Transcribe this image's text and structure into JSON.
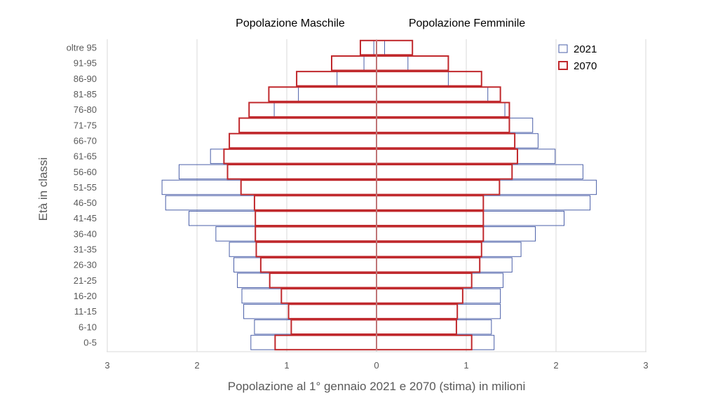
{
  "chart_data": {
    "type": "bar",
    "orientation": "horizontal-population-pyramid",
    "left_header": "Popolazione Maschile",
    "right_header": "Popolazione Femminile",
    "xlabel": "Popolazione al 1° gennaio 2021 e 2070 (stima) in milioni",
    "ylabel": "Età in classi",
    "xlim": [
      -3,
      3
    ],
    "x_tick_values": [
      -3,
      -2,
      -1,
      0,
      1,
      2,
      3
    ],
    "x_tick_labels": [
      "3",
      "2",
      "1",
      "0",
      "1",
      "2",
      "3"
    ],
    "grid": true,
    "legend_position": "top-right",
    "categories": [
      "0-5",
      "6-10",
      "11-15",
      "16-20",
      "21-25",
      "26-30",
      "31-35",
      "36-40",
      "41-45",
      "46-50",
      "51-55",
      "56-60",
      "61-65",
      "66-70",
      "71-75",
      "76-80",
      "81-85",
      "86-90",
      "91-95",
      "oltre 95"
    ],
    "series": [
      {
        "name": "2021",
        "color": "#4a5fa8",
        "male": [
          1.4,
          1.36,
          1.48,
          1.5,
          1.55,
          1.59,
          1.64,
          1.79,
          2.09,
          2.35,
          2.39,
          2.2,
          1.85,
          1.64,
          1.53,
          1.14,
          0.87,
          0.44,
          0.14,
          0.03
        ],
        "female": [
          1.31,
          1.28,
          1.38,
          1.38,
          1.41,
          1.51,
          1.61,
          1.77,
          2.09,
          2.38,
          2.45,
          2.3,
          1.99,
          1.8,
          1.74,
          1.43,
          1.24,
          0.8,
          0.35,
          0.09
        ]
      },
      {
        "name": "2070",
        "color": "#c0282c",
        "male": [
          1.13,
          0.95,
          0.98,
          1.06,
          1.19,
          1.29,
          1.34,
          1.35,
          1.35,
          1.36,
          1.51,
          1.66,
          1.7,
          1.64,
          1.53,
          1.42,
          1.2,
          0.89,
          0.5,
          0.18
        ],
        "female": [
          1.06,
          0.89,
          0.9,
          0.96,
          1.06,
          1.15,
          1.17,
          1.19,
          1.19,
          1.19,
          1.37,
          1.51,
          1.57,
          1.54,
          1.48,
          1.48,
          1.38,
          1.17,
          0.8,
          0.4
        ]
      }
    ]
  }
}
